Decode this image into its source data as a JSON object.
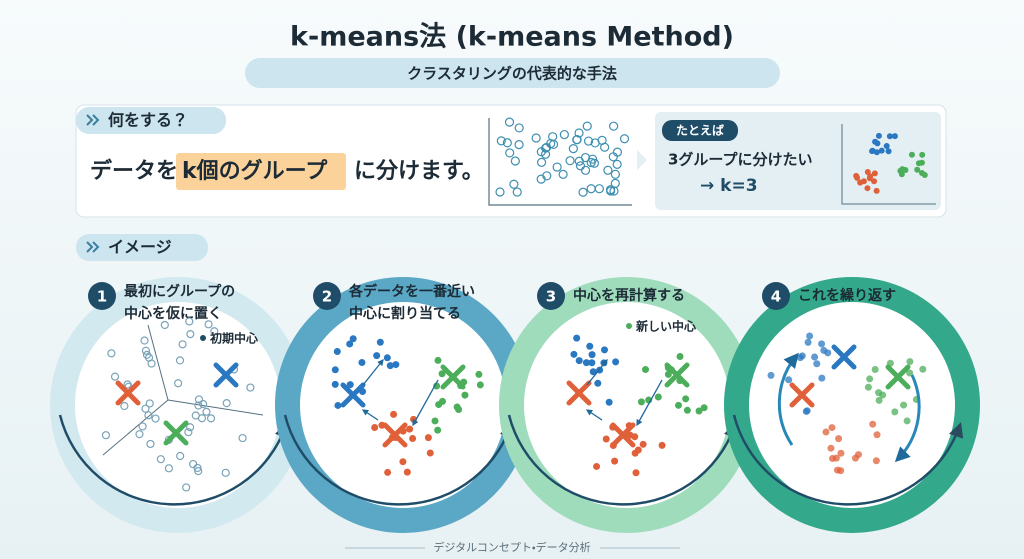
{
  "header": {
    "title": "k-means法 (k-means Method)",
    "subtitle": "クラスタリングの代表的な手法"
  },
  "what": {
    "label": "何をする？",
    "text_before": "データを",
    "highlight": "k個のグループ",
    "text_after": "に分けます。",
    "example": {
      "label": "たとえば",
      "line1": "3グループに分けたい",
      "line2": "→ k=3"
    }
  },
  "image": {
    "label": "イメージ",
    "steps": [
      {
        "number": "1",
        "lines": [
          "最初にグループの",
          "中心を仮に置く"
        ],
        "annotation": "初期中心"
      },
      {
        "number": "2",
        "lines": [
          "各データを一番近い",
          "中心に割り当てる"
        ]
      },
      {
        "number": "3",
        "lines": [
          "中心を再計算する"
        ],
        "annotation": "新しい中心"
      },
      {
        "number": "4",
        "lines": [
          "これを繰り返す"
        ]
      }
    ]
  },
  "footer": "デジタルコンセプト・データ分析"
}
